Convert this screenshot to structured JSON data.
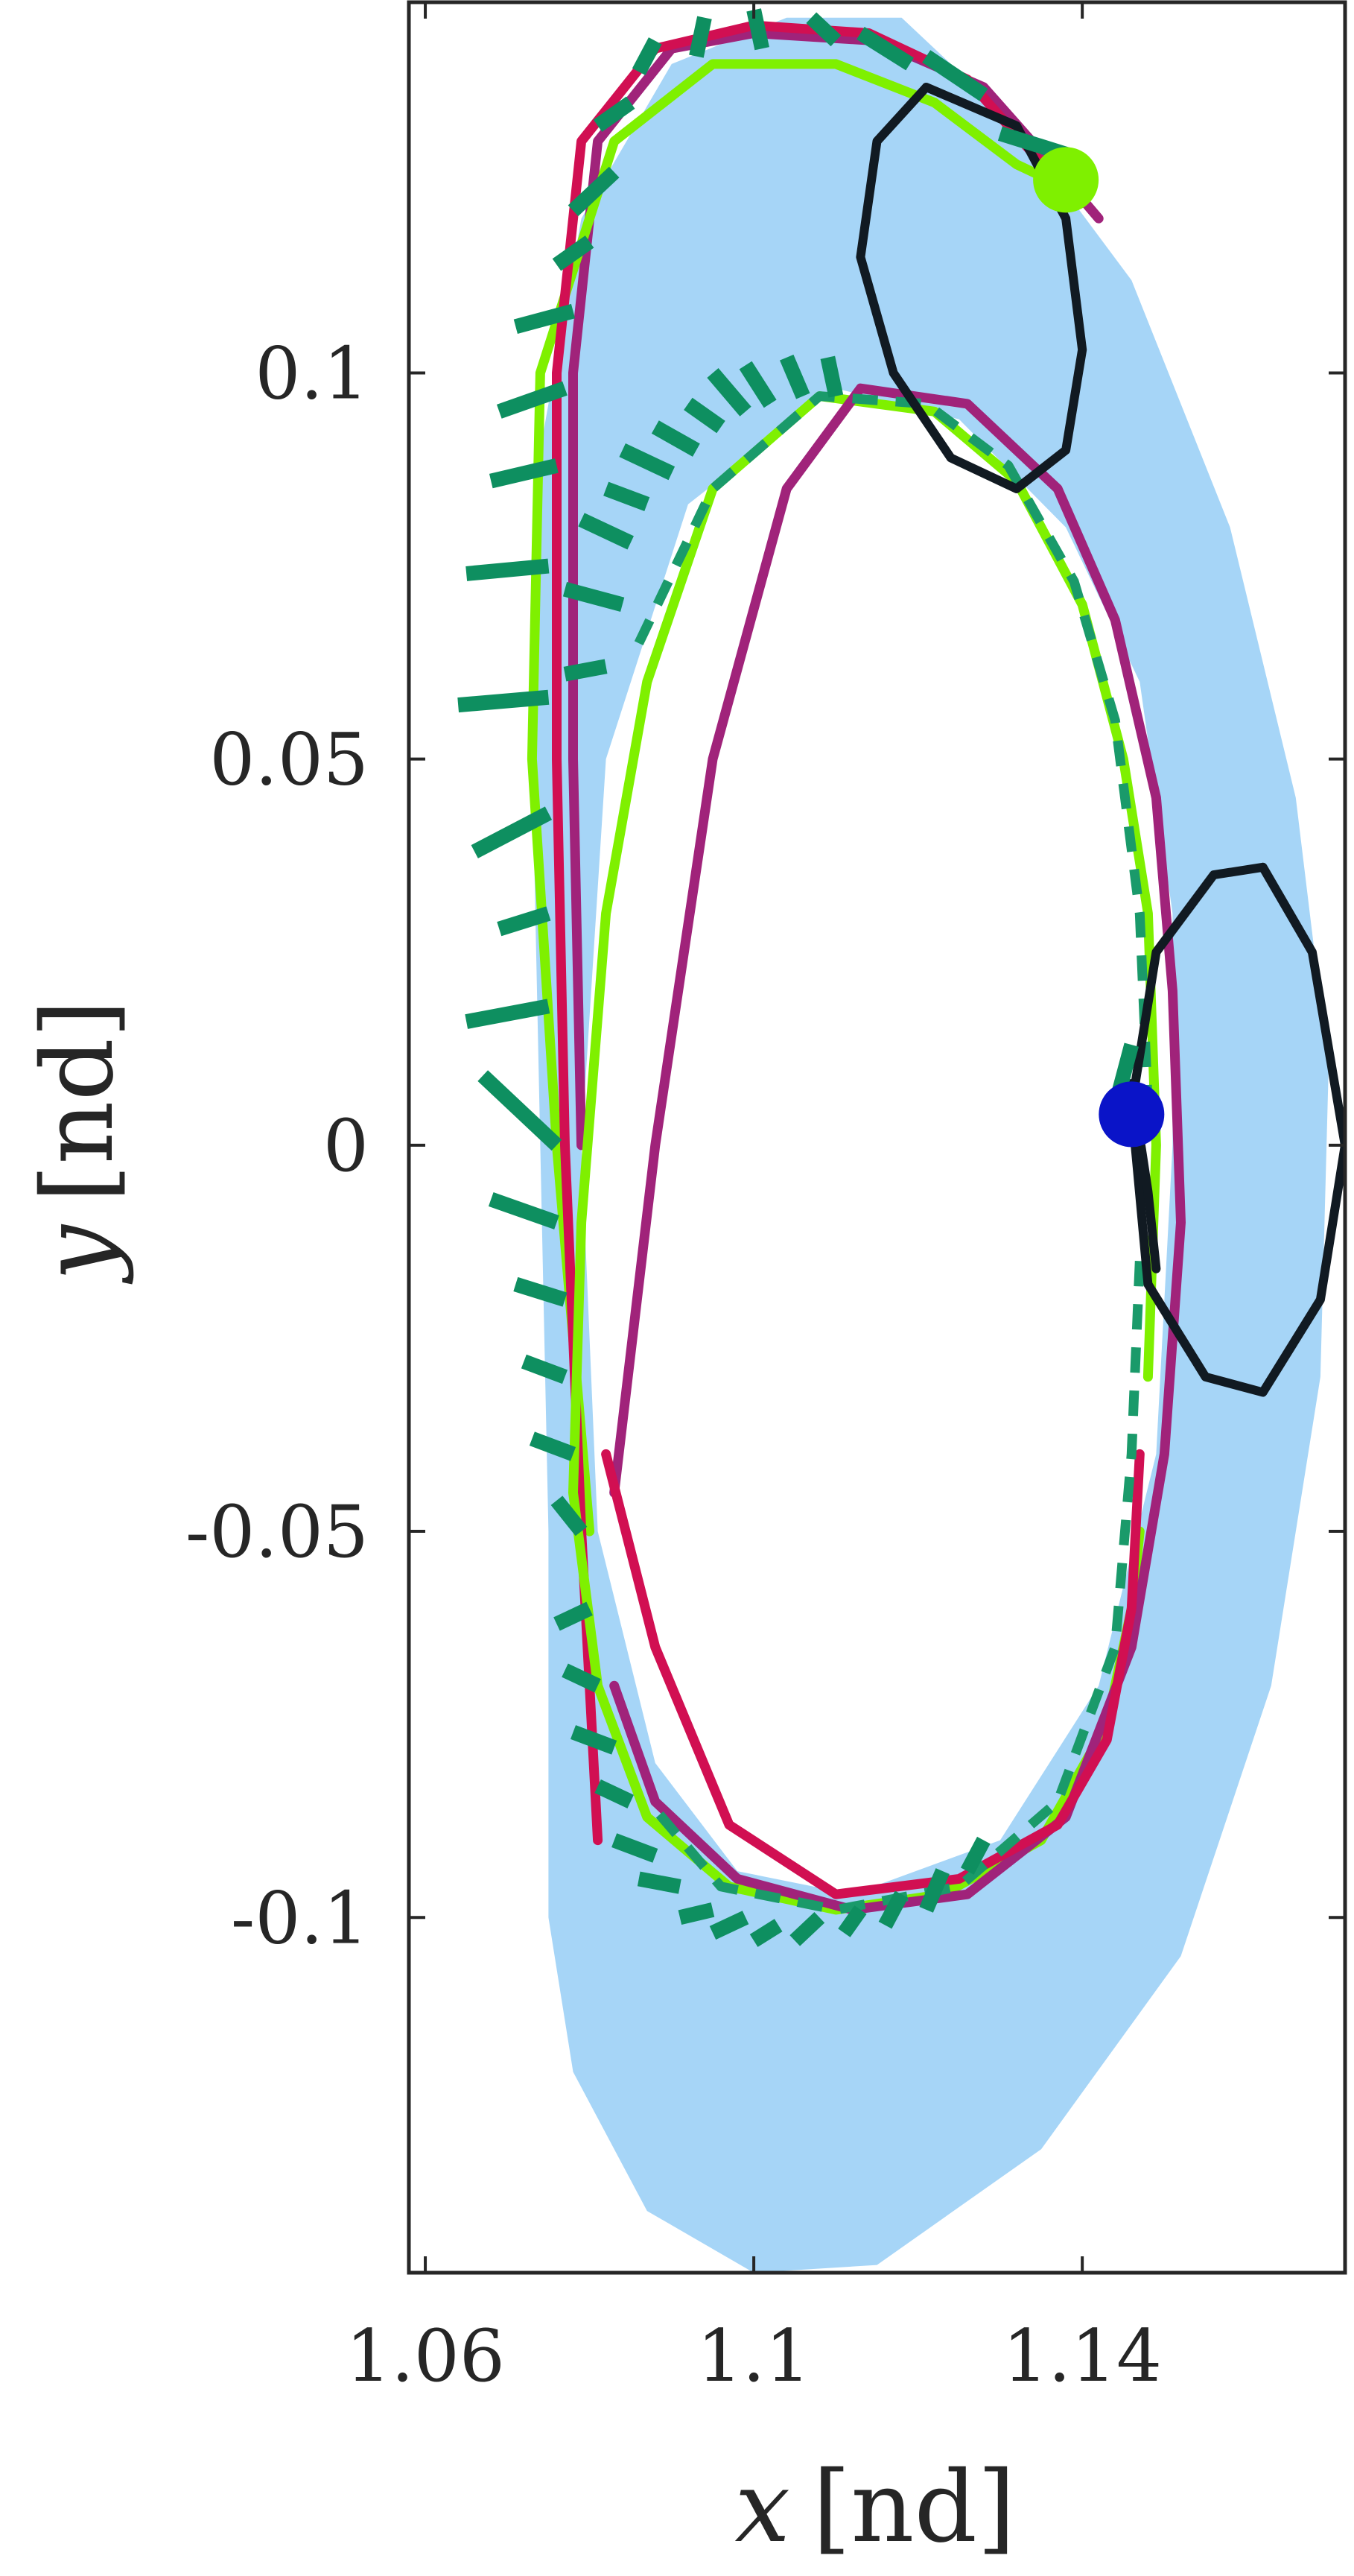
{
  "chart_data": {
    "type": "line",
    "title": "",
    "xlabel": {
      "symbol": "x",
      "unit": "[nd]"
    },
    "ylabel": {
      "symbol": "y",
      "unit": "[nd]"
    },
    "xlim": [
      1.058,
      1.172
    ],
    "ylim": [
      -0.146,
      0.148
    ],
    "xticks": [
      {
        "value": 1.06,
        "label": "1.06"
      },
      {
        "value": 1.1,
        "label": "1.1"
      },
      {
        "value": 1.14,
        "label": "1.14"
      }
    ],
    "yticks": [
      {
        "value": 0.1,
        "label": "0.1"
      },
      {
        "value": 0.05,
        "label": "0.05"
      },
      {
        "value": 0,
        "label": "0"
      },
      {
        "value": -0.05,
        "label": "-0.05"
      },
      {
        "value": -0.1,
        "label": "-0.1"
      }
    ],
    "grid": false,
    "legend": "none",
    "colors": {
      "region_fill": "#a6d5f7",
      "green_path": "#7ff000",
      "red_path": "#d10f52",
      "purple_path": "#a0237a",
      "dashed_path": "#1a9a6a",
      "control_ticks": "#0e8f60",
      "ellipse_outline": "#111a22",
      "start_marker": "#7ff000",
      "end_marker": "#0a14c8"
    },
    "series": [
      {
        "style": "filled-region",
        "outer": [
          [
            1.104,
            0.146
          ],
          [
            1.118,
            0.146
          ],
          [
            1.132,
            0.132
          ],
          [
            1.146,
            0.112
          ],
          [
            1.158,
            0.08
          ],
          [
            1.166,
            0.045
          ],
          [
            1.17,
            0.01
          ],
          [
            1.169,
            -0.03
          ],
          [
            1.163,
            -0.07
          ],
          [
            1.152,
            -0.105
          ],
          [
            1.135,
            -0.13
          ],
          [
            1.115,
            -0.145
          ],
          [
            1.1,
            -0.146
          ],
          [
            1.087,
            -0.138
          ],
          [
            1.078,
            -0.12
          ],
          [
            1.075,
            -0.1
          ],
          [
            1.075,
            -0.05
          ],
          [
            1.074,
            0.0
          ],
          [
            1.073,
            0.05
          ],
          [
            1.074,
            0.09
          ],
          [
            1.079,
            0.12
          ],
          [
            1.09,
            0.14
          ]
        ],
        "inner": [
          [
            1.11,
            0.098
          ],
          [
            1.125,
            0.094
          ],
          [
            1.138,
            0.08
          ],
          [
            1.147,
            0.06
          ],
          [
            1.151,
            0.03
          ],
          [
            1.151,
            0.0
          ],
          [
            1.149,
            -0.04
          ],
          [
            1.142,
            -0.07
          ],
          [
            1.13,
            -0.09
          ],
          [
            1.112,
            -0.097
          ],
          [
            1.098,
            -0.094
          ],
          [
            1.088,
            -0.08
          ],
          [
            1.081,
            -0.05
          ],
          [
            1.079,
            0.0
          ],
          [
            1.082,
            0.05
          ],
          [
            1.092,
            0.083
          ]
        ]
      },
      {
        "style": "solid",
        "color_key": "purple_path",
        "points": [
          [
            1.079,
            0.0
          ],
          [
            1.078,
            0.05
          ],
          [
            1.078,
            0.1
          ],
          [
            1.081,
            0.13
          ],
          [
            1.09,
            0.142
          ],
          [
            1.1,
            0.144
          ],
          [
            1.115,
            0.143
          ],
          [
            1.128,
            0.137
          ],
          [
            1.138,
            0.125
          ],
          [
            1.142,
            0.12
          ]
        ]
      },
      {
        "style": "solid",
        "color_key": "green_path",
        "points": [
          [
            1.08,
            -0.05
          ],
          [
            1.076,
            0.0
          ],
          [
            1.073,
            0.05
          ],
          [
            1.074,
            0.1
          ],
          [
            1.083,
            0.13
          ],
          [
            1.095,
            0.14
          ],
          [
            1.11,
            0.14
          ],
          [
            1.122,
            0.135
          ],
          [
            1.132,
            0.127
          ],
          [
            1.138,
            0.124
          ]
        ]
      },
      {
        "style": "solid",
        "color_key": "red_path",
        "points": [
          [
            1.081,
            -0.09
          ],
          [
            1.079,
            -0.05
          ],
          [
            1.077,
            0.0
          ],
          [
            1.076,
            0.05
          ],
          [
            1.076,
            0.1
          ],
          [
            1.079,
            0.13
          ],
          [
            1.088,
            0.142
          ],
          [
            1.1,
            0.145
          ],
          [
            1.114,
            0.144
          ],
          [
            1.126,
            0.138
          ],
          [
            1.136,
            0.126
          ]
        ]
      },
      {
        "style": "solid",
        "color_key": "green_path",
        "points": [
          [
            1.147,
            -0.05
          ],
          [
            1.146,
            -0.06
          ],
          [
            1.143,
            -0.075
          ],
          [
            1.135,
            -0.09
          ],
          [
            1.123,
            -0.097
          ],
          [
            1.11,
            -0.099
          ],
          [
            1.097,
            -0.096
          ],
          [
            1.087,
            -0.087
          ],
          [
            1.081,
            -0.07
          ],
          [
            1.078,
            -0.045
          ],
          [
            1.079,
            -0.01
          ],
          [
            1.082,
            0.03
          ],
          [
            1.087,
            0.06
          ],
          [
            1.095,
            0.085
          ],
          [
            1.108,
            0.097
          ],
          [
            1.122,
            0.095
          ],
          [
            1.132,
            0.086
          ],
          [
            1.14,
            0.07
          ],
          [
            1.145,
            0.05
          ],
          [
            1.148,
            0.03
          ],
          [
            1.149,
            0.0
          ],
          [
            1.148,
            -0.03
          ]
        ]
      },
      {
        "style": "solid",
        "color_key": "purple_path",
        "points": [
          [
            1.083,
            -0.045
          ],
          [
            1.088,
            0.0
          ],
          [
            1.095,
            0.05
          ],
          [
            1.104,
            0.085
          ],
          [
            1.113,
            0.098
          ],
          [
            1.126,
            0.096
          ],
          [
            1.137,
            0.085
          ],
          [
            1.144,
            0.068
          ],
          [
            1.149,
            0.045
          ],
          [
            1.151,
            0.02
          ],
          [
            1.152,
            -0.01
          ],
          [
            1.15,
            -0.04
          ],
          [
            1.146,
            -0.065
          ],
          [
            1.138,
            -0.087
          ],
          [
            1.126,
            -0.097
          ],
          [
            1.112,
            -0.099
          ],
          [
            1.098,
            -0.095
          ],
          [
            1.088,
            -0.085
          ],
          [
            1.083,
            -0.07
          ]
        ]
      },
      {
        "style": "solid",
        "color_key": "red_path",
        "points": [
          [
            1.082,
            -0.04
          ],
          [
            1.088,
            -0.065
          ],
          [
            1.097,
            -0.088
          ],
          [
            1.11,
            -0.097
          ],
          [
            1.125,
            -0.095
          ],
          [
            1.137,
            -0.088
          ],
          [
            1.143,
            -0.077
          ],
          [
            1.146,
            -0.06
          ],
          [
            1.147,
            -0.04
          ]
        ]
      },
      {
        "style": "dashed",
        "color_key": "dashed_path",
        "points": [
          [
            1.147,
            -0.015
          ],
          [
            1.146,
            -0.04
          ],
          [
            1.144,
            -0.065
          ],
          [
            1.137,
            -0.085
          ],
          [
            1.125,
            -0.096
          ],
          [
            1.11,
            -0.099
          ],
          [
            1.096,
            -0.096
          ],
          [
            1.088,
            -0.086
          ]
        ]
      },
      {
        "style": "dashed",
        "color_key": "dashed_path",
        "points": [
          [
            1.086,
            0.065
          ],
          [
            1.095,
            0.085
          ],
          [
            1.108,
            0.097
          ],
          [
            1.121,
            0.096
          ],
          [
            1.131,
            0.088
          ],
          [
            1.139,
            0.073
          ],
          [
            1.144,
            0.055
          ],
          [
            1.147,
            0.03
          ],
          [
            1.148,
            0.005
          ]
        ]
      },
      {
        "style": "solid",
        "color_key": "ellipse_outline",
        "points": [
          [
            1.121,
            0.137
          ],
          [
            1.132,
            0.132
          ],
          [
            1.138,
            0.12
          ],
          [
            1.14,
            0.103
          ],
          [
            1.138,
            0.09
          ],
          [
            1.132,
            0.085
          ],
          [
            1.124,
            0.089
          ],
          [
            1.117,
            0.1
          ],
          [
            1.113,
            0.115
          ],
          [
            1.115,
            0.13
          ],
          [
            1.121,
            0.137
          ]
        ]
      },
      {
        "style": "solid",
        "color_key": "ellipse_outline",
        "points": [
          [
            1.162,
            0.036
          ],
          [
            1.168,
            0.025
          ],
          [
            1.172,
            0.0
          ],
          [
            1.169,
            -0.02
          ],
          [
            1.162,
            -0.032
          ],
          [
            1.155,
            -0.03
          ],
          [
            1.148,
            -0.018
          ],
          [
            1.146,
            0.005
          ],
          [
            1.149,
            0.025
          ],
          [
            1.156,
            0.035
          ],
          [
            1.162,
            0.036
          ]
        ]
      },
      {
        "style": "solid",
        "color_key": "ellipse_outline",
        "points": [
          [
            1.146,
            0.008
          ],
          [
            1.148,
            -0.006
          ],
          [
            1.149,
            -0.016
          ]
        ]
      }
    ],
    "control_ticks": [
      [
        1.088,
        0.143,
        1.086,
        0.139
      ],
      [
        1.094,
        0.146,
        1.093,
        0.141
      ],
      [
        1.1,
        0.147,
        1.101,
        0.142
      ],
      [
        1.107,
        0.146,
        1.11,
        0.143
      ],
      [
        1.113,
        0.144,
        1.119,
        0.14
      ],
      [
        1.121,
        0.141,
        1.128,
        0.136
      ],
      [
        1.13,
        0.131,
        1.139,
        0.128
      ],
      [
        1.085,
        0.135,
        1.081,
        0.132
      ],
      [
        1.083,
        0.126,
        1.078,
        0.121
      ],
      [
        1.08,
        0.117,
        1.076,
        0.114
      ],
      [
        1.078,
        0.108,
        1.071,
        0.106
      ],
      [
        1.077,
        0.098,
        1.069,
        0.095
      ],
      [
        1.076,
        0.088,
        1.068,
        0.086
      ],
      [
        1.075,
        0.075,
        1.065,
        0.074
      ],
      [
        1.075,
        0.058,
        1.064,
        0.057
      ],
      [
        1.075,
        0.043,
        1.066,
        0.038
      ],
      [
        1.075,
        0.03,
        1.069,
        0.028
      ],
      [
        1.075,
        0.018,
        1.065,
        0.016
      ],
      [
        1.076,
        0.0,
        1.067,
        0.009
      ],
      [
        1.076,
        -0.01,
        1.068,
        -0.007
      ],
      [
        1.077,
        -0.02,
        1.071,
        -0.018
      ],
      [
        1.077,
        -0.03,
        1.072,
        -0.028
      ],
      [
        1.078,
        -0.04,
        1.073,
        -0.038
      ],
      [
        1.079,
        -0.05,
        1.076,
        -0.046
      ],
      [
        1.08,
        -0.06,
        1.076,
        -0.062
      ],
      [
        1.081,
        -0.07,
        1.077,
        -0.068
      ],
      [
        1.083,
        -0.078,
        1.078,
        -0.076
      ],
      [
        1.085,
        -0.085,
        1.081,
        -0.083
      ],
      [
        1.088,
        -0.092,
        1.083,
        -0.09
      ],
      [
        1.091,
        -0.096,
        1.086,
        -0.095
      ],
      [
        1.095,
        -0.099,
        1.091,
        -0.1
      ],
      [
        1.099,
        -0.1,
        1.095,
        -0.102
      ],
      [
        1.103,
        -0.101,
        1.1,
        -0.103
      ],
      [
        1.108,
        -0.1,
        1.105,
        -0.103
      ],
      [
        1.113,
        -0.099,
        1.111,
        -0.102
      ],
      [
        1.118,
        -0.097,
        1.116,
        -0.101
      ],
      [
        1.123,
        -0.094,
        1.121,
        -0.099
      ],
      [
        1.128,
        -0.09,
        1.126,
        -0.094
      ],
      [
        1.082,
        0.062,
        1.077,
        0.061
      ],
      [
        1.084,
        0.07,
        1.077,
        0.072
      ],
      [
        1.085,
        0.078,
        1.079,
        0.081
      ],
      [
        1.087,
        0.083,
        1.082,
        0.085
      ],
      [
        1.09,
        0.087,
        1.084,
        0.09
      ],
      [
        1.093,
        0.09,
        1.088,
        0.093
      ],
      [
        1.096,
        0.093,
        1.092,
        0.096
      ],
      [
        1.099,
        0.095,
        1.095,
        0.1
      ],
      [
        1.102,
        0.096,
        1.099,
        0.101
      ],
      [
        1.106,
        0.097,
        1.104,
        0.102
      ],
      [
        1.11,
        0.097,
        1.109,
        0.102
      ],
      [
        1.146,
        0.013,
        1.144,
        0.005
      ]
    ],
    "markers": [
      {
        "x": 1.138,
        "y": 0.125,
        "color_key": "start_marker"
      },
      {
        "x": 1.146,
        "y": 0.004,
        "color_key": "end_marker"
      }
    ]
  }
}
